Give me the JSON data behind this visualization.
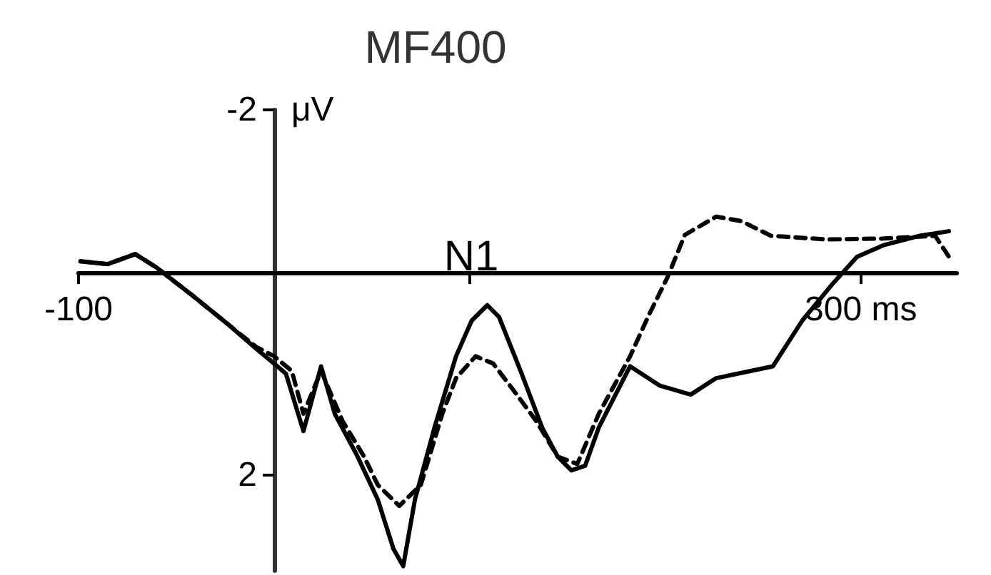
{
  "chart_data": {
    "type": "line",
    "title": "MF400",
    "ylabel": "μV",
    "xlim": [
      -100,
      349
    ],
    "ylim": [
      3.05,
      -2
    ],
    "xticks": [
      -100,
      {
        "value": 100,
        "label": null
      },
      {
        "value": 300,
        "label": "300 ms"
      }
    ],
    "yticks": [
      -2,
      2
    ],
    "annotations": [
      "N1"
    ],
    "marker": "none",
    "series": [
      {
        "color": "#000000",
        "line_style": "solid",
        "x": [
          -99,
          -85,
          -71,
          -60,
          -42,
          -23,
          -9,
          0,
          6,
          15,
          24,
          31,
          42,
          53,
          61,
          66,
          72,
          82,
          93,
          101,
          109,
          115,
          126,
          137,
          145,
          152,
          159,
          166,
          182,
          197,
          213,
          226,
          255,
          270,
          285,
          298,
          312,
          330,
          345
        ],
        "values": [
          -0.34,
          -0.31,
          -0.42,
          -0.27,
          0.03,
          0.36,
          0.62,
          0.78,
          0.89,
          1.52,
          0.81,
          1.33,
          1.77,
          2.27,
          2.81,
          3.0,
          2.27,
          1.48,
          0.7,
          0.31,
          0.14,
          0.27,
          0.86,
          1.48,
          1.8,
          1.95,
          1.9,
          1.48,
          0.81,
          1.02,
          1.12,
          0.94,
          0.81,
          0.31,
          -0.08,
          -0.39,
          -0.52,
          -0.62,
          -0.67
        ]
      },
      {
        "color": "#000000",
        "line_style": "dashed",
        "x": [
          -99,
          -85,
          -71,
          -60,
          -42,
          -23,
          -9,
          0,
          9,
          15,
          24,
          35,
          46,
          53,
          64,
          75,
          86,
          93,
          103,
          112,
          123,
          134,
          145,
          155,
          166,
          182,
          192,
          201,
          210,
          226,
          239,
          254,
          283,
          312,
          338,
          345
        ],
        "values": [
          -0.34,
          -0.31,
          -0.42,
          -0.27,
          0.03,
          0.36,
          0.6,
          0.7,
          0.86,
          1.33,
          0.86,
          1.41,
          1.8,
          2.11,
          2.34,
          2.11,
          1.33,
          0.94,
          0.7,
          0.78,
          1.09,
          1.41,
          1.8,
          1.88,
          1.33,
          0.7,
          0.23,
          -0.16,
          -0.63,
          -0.83,
          -0.78,
          -0.62,
          -0.58,
          -0.59,
          -0.62,
          -0.39
        ]
      }
    ]
  }
}
